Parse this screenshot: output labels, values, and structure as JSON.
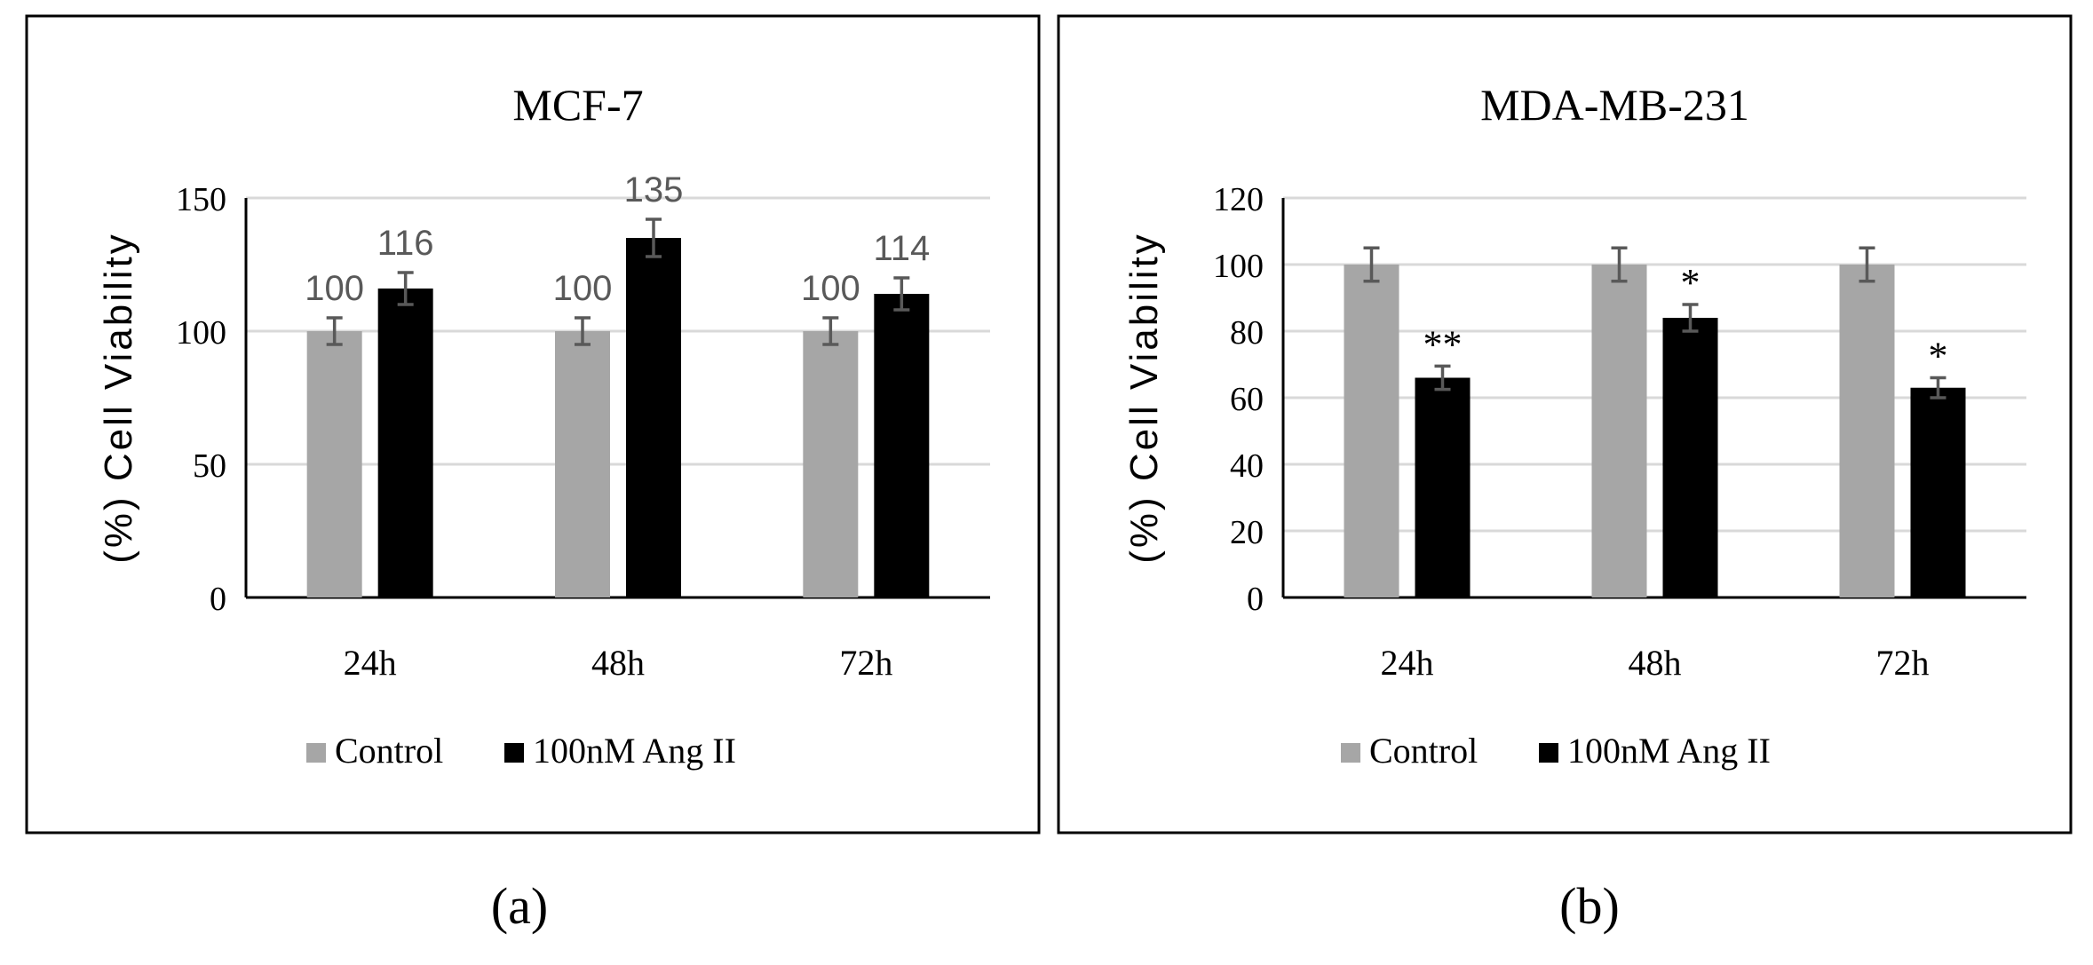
{
  "colors": {
    "control": "#a6a6a6",
    "treatment": "#000000",
    "grid": "#d9d9d9",
    "axis": "#000000",
    "error": "#595959",
    "value_label": "#595959",
    "frame": "#000000"
  },
  "chart_data": [
    {
      "type": "bar",
      "panel_label": "(a)",
      "title": "MCF-7",
      "xlabel": "",
      "ylabel": "(%) Cell Viability",
      "categories": [
        "24h",
        "48h",
        "72h"
      ],
      "ylim": [
        0,
        150
      ],
      "yticks": [
        0,
        50,
        100,
        150
      ],
      "grid": true,
      "legend_position": "bottom",
      "series": [
        {
          "name": "Control",
          "values": [
            100,
            100,
            100
          ],
          "errors": [
            5,
            5,
            5
          ],
          "data_labels": [
            "100",
            "100",
            "100"
          ]
        },
        {
          "name": "100nM Ang II",
          "values": [
            116,
            135,
            114
          ],
          "errors": [
            6,
            7,
            6
          ],
          "data_labels": [
            "116",
            "135",
            "114"
          ]
        }
      ],
      "annotations": []
    },
    {
      "type": "bar",
      "panel_label": "(b)",
      "title": "MDA-MB-231",
      "xlabel": "",
      "ylabel": "(%) Cell Viability",
      "categories": [
        "24h",
        "48h",
        "72h"
      ],
      "ylim": [
        0,
        120
      ],
      "yticks": [
        0,
        20,
        40,
        60,
        80,
        100,
        120
      ],
      "grid": true,
      "legend_position": "bottom",
      "series": [
        {
          "name": "Control",
          "values": [
            100,
            100,
            100
          ],
          "errors": [
            5,
            5,
            5
          ],
          "data_labels": []
        },
        {
          "name": "100nM Ang II",
          "values": [
            66,
            84,
            63
          ],
          "errors": [
            3.5,
            4,
            3
          ],
          "data_labels": []
        }
      ],
      "annotations": [
        "**",
        "*",
        "*"
      ]
    }
  ]
}
